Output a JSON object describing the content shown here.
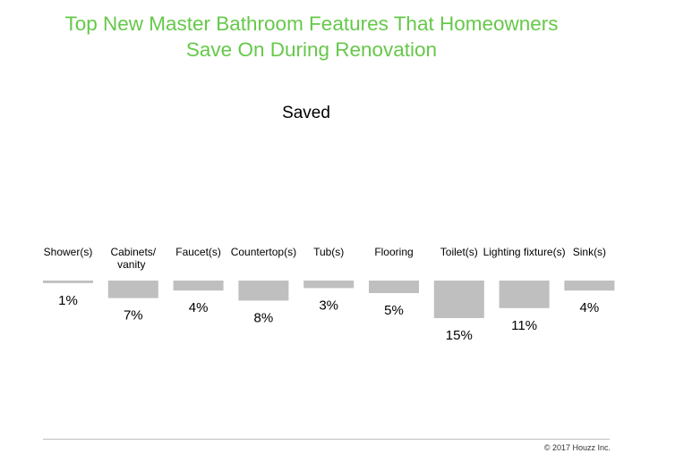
{
  "title_line1": "Top New Master Bathroom Features That Homeowners",
  "title_line2": "Save On During Renovation",
  "colors": {
    "title": "#66c84a",
    "bar": "#bfbfbf",
    "text": "#000000"
  },
  "chart_data": {
    "type": "bar",
    "title": "Top New Master Bathroom Features That Homeowners Save On During Renovation",
    "subtitle": "Saved",
    "categories": [
      [
        "Shower(s)"
      ],
      [
        "Cabinets/",
        "vanity"
      ],
      [
        "Faucet(s)"
      ],
      [
        "Countertop(s)"
      ],
      [
        "Tub(s)"
      ],
      [
        "Flooring"
      ],
      [
        "Toilet(s)"
      ],
      [
        "Lighting fixture(s)"
      ],
      [
        "Sink(s)"
      ]
    ],
    "values": [
      1,
      7,
      4,
      8,
      3,
      5,
      15,
      11,
      4
    ],
    "value_labels": [
      "1%",
      "7%",
      "4%",
      "8%",
      "3%",
      "5%",
      "15%",
      "11%",
      "4%"
    ],
    "unit": "%",
    "orientation": "bars hang downward from baseline",
    "grid": false,
    "legend": "none"
  },
  "copyright": "© 2017 Houzz Inc."
}
